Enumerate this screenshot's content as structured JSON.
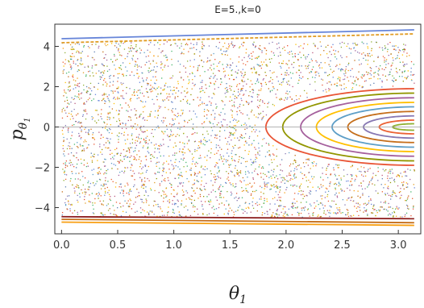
{
  "chart_data": {
    "type": "scatter",
    "title": "E=5.,k=0",
    "xlabel": "θ1",
    "ylabel": "pθ1",
    "xlim": [
      -0.06,
      3.2
    ],
    "ylim": [
      -5.3,
      5.1
    ],
    "xticks": [
      0.0,
      0.5,
      1.0,
      1.5,
      2.0,
      2.5,
      3.0
    ],
    "xtick_labels": [
      "0.0",
      "0.5",
      "1.0",
      "1.5",
      "2.0",
      "2.5",
      "3.0"
    ],
    "yticks": [
      -4,
      -2,
      0,
      2,
      4
    ],
    "ytick_labels": [
      "−4",
      "−2",
      "0",
      "2",
      "4"
    ],
    "grid": false,
    "frame": true,
    "zero_line": true,
    "palette": [
      "#5e81b5",
      "#e19c24",
      "#8fb032",
      "#eb6235",
      "#8778b3",
      "#c56e1a",
      "#5d9ec7",
      "#ffbf00",
      "#a5609d",
      "#929600",
      "#e95536",
      "#6685d9",
      "#f89f13",
      "#bc5b80",
      "#47b66d"
    ],
    "regular_orbits": [
      {
        "center": [
          3.1416,
          0
        ],
        "theta_min": 1.82,
        "p_max": 1.9,
        "color": "#e95536"
      },
      {
        "center": [
          3.1416,
          0
        ],
        "theta_min": 1.97,
        "p_max": 1.68,
        "color": "#929600"
      },
      {
        "center": [
          3.1416,
          0
        ],
        "theta_min": 2.13,
        "p_max": 1.45,
        "color": "#a5609d"
      },
      {
        "center": [
          3.1416,
          0
        ],
        "theta_min": 2.27,
        "p_max": 1.22,
        "color": "#ffbf00"
      },
      {
        "center": [
          3.1416,
          0
        ],
        "theta_min": 2.41,
        "p_max": 1.0,
        "color": "#5d9ec7"
      },
      {
        "center": [
          3.1416,
          0
        ],
        "theta_min": 2.55,
        "p_max": 0.77,
        "color": "#c56e1a"
      },
      {
        "center": [
          3.1416,
          0
        ],
        "theta_min": 2.69,
        "p_max": 0.55,
        "color": "#8778b3"
      },
      {
        "center": [
          3.1416,
          0
        ],
        "theta_min": 2.83,
        "p_max": 0.34,
        "color": "#eb6235"
      },
      {
        "center": [
          3.1416,
          0
        ],
        "theta_min": 2.95,
        "p_max": 0.16,
        "color": "#8fb032"
      }
    ],
    "boundary_curves": [
      {
        "p_start": 4.38,
        "p_end": 4.82,
        "color": "#6685d9",
        "dashed": false
      },
      {
        "p_start": 4.18,
        "p_end": 4.62,
        "color": "#e19c24",
        "dashed": true
      },
      {
        "p_start": -4.45,
        "p_end": -4.55,
        "color": "#8b1a1a",
        "dashed": false
      },
      {
        "p_start": -4.58,
        "p_end": -4.75,
        "color": "#c56e1a",
        "dashed": false
      },
      {
        "p_start": -4.72,
        "p_end": -4.88,
        "color": "#f89f13",
        "dashed": false
      }
    ]
  }
}
